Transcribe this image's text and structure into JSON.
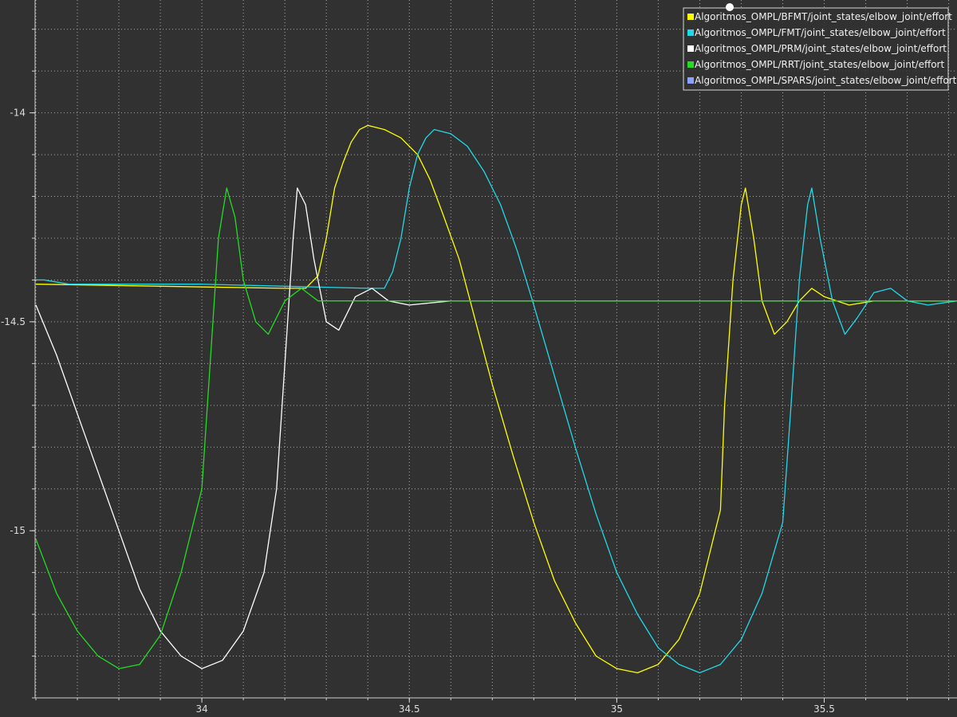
{
  "chart_data": {
    "type": "line",
    "title": "",
    "xlabel": "",
    "ylabel": "",
    "xlim": [
      33.6,
      35.82
    ],
    "ylim": [
      -15.4,
      -13.73
    ],
    "xticks": [
      34,
      34.5,
      35,
      35.5
    ],
    "xtick_labels": [
      "34",
      "34.5",
      "35",
      "35.5"
    ],
    "yticks": [
      -14,
      -14.5,
      -15
    ],
    "ytick_labels": [
      "-14",
      "-14.5",
      "-15"
    ],
    "grid": true,
    "legend_position": "top-right",
    "series": [
      {
        "name": "Algoritmos_OMPL/BFMT/joint_states/elbow_joint/effort",
        "color": "#ffff00",
        "points": [
          [
            33.6,
            -14.41
          ],
          [
            34.2,
            -14.42
          ],
          [
            34.25,
            -14.42
          ],
          [
            34.28,
            -14.39
          ],
          [
            34.3,
            -14.3
          ],
          [
            34.32,
            -14.18
          ],
          [
            34.34,
            -14.12
          ],
          [
            34.36,
            -14.07
          ],
          [
            34.38,
            -14.04
          ],
          [
            34.4,
            -14.03
          ],
          [
            34.44,
            -14.04
          ],
          [
            34.48,
            -14.06
          ],
          [
            34.52,
            -14.1
          ],
          [
            34.55,
            -14.16
          ],
          [
            34.58,
            -14.24
          ],
          [
            34.62,
            -14.35
          ],
          [
            34.66,
            -14.5
          ],
          [
            34.7,
            -14.65
          ],
          [
            34.75,
            -14.82
          ],
          [
            34.8,
            -14.98
          ],
          [
            34.85,
            -15.12
          ],
          [
            34.9,
            -15.22
          ],
          [
            34.95,
            -15.3
          ],
          [
            35.0,
            -15.33
          ],
          [
            35.05,
            -15.34
          ],
          [
            35.1,
            -15.32
          ],
          [
            35.15,
            -15.26
          ],
          [
            35.2,
            -15.15
          ],
          [
            35.25,
            -14.95
          ],
          [
            35.26,
            -14.7
          ],
          [
            35.28,
            -14.4
          ],
          [
            35.3,
            -14.22
          ],
          [
            35.31,
            -14.18
          ],
          [
            35.33,
            -14.3
          ],
          [
            35.35,
            -14.45
          ],
          [
            35.38,
            -14.53
          ],
          [
            35.41,
            -14.5
          ],
          [
            35.44,
            -14.45
          ],
          [
            35.47,
            -14.42
          ],
          [
            35.5,
            -14.44
          ],
          [
            35.56,
            -14.46
          ],
          [
            35.62,
            -14.45
          ],
          [
            35.7,
            -14.45
          ],
          [
            35.82,
            -14.45
          ]
        ]
      },
      {
        "name": "Algoritmos_OMPL/FMT/joint_states/elbow_joint/effort",
        "color": "#22d8e8",
        "points": [
          [
            33.6,
            -14.4
          ],
          [
            33.62,
            -14.4
          ],
          [
            33.68,
            -14.41
          ],
          [
            34.0,
            -14.41
          ],
          [
            34.4,
            -14.42
          ],
          [
            34.44,
            -14.42
          ],
          [
            34.46,
            -14.38
          ],
          [
            34.48,
            -14.3
          ],
          [
            34.5,
            -14.18
          ],
          [
            34.52,
            -14.1
          ],
          [
            34.54,
            -14.06
          ],
          [
            34.56,
            -14.04
          ],
          [
            34.6,
            -14.05
          ],
          [
            34.64,
            -14.08
          ],
          [
            34.68,
            -14.14
          ],
          [
            34.72,
            -14.22
          ],
          [
            34.76,
            -14.33
          ],
          [
            34.8,
            -14.46
          ],
          [
            34.85,
            -14.63
          ],
          [
            34.9,
            -14.8
          ],
          [
            34.95,
            -14.96
          ],
          [
            35.0,
            -15.1
          ],
          [
            35.05,
            -15.2
          ],
          [
            35.1,
            -15.28
          ],
          [
            35.15,
            -15.32
          ],
          [
            35.2,
            -15.34
          ],
          [
            35.25,
            -15.32
          ],
          [
            35.3,
            -15.26
          ],
          [
            35.35,
            -15.15
          ],
          [
            35.4,
            -14.98
          ],
          [
            35.42,
            -14.7
          ],
          [
            35.44,
            -14.4
          ],
          [
            35.46,
            -14.22
          ],
          [
            35.47,
            -14.18
          ],
          [
            35.49,
            -14.3
          ],
          [
            35.52,
            -14.45
          ],
          [
            35.55,
            -14.53
          ],
          [
            35.58,
            -14.49
          ],
          [
            35.62,
            -14.43
          ],
          [
            35.66,
            -14.42
          ],
          [
            35.7,
            -14.45
          ],
          [
            35.75,
            -14.46
          ],
          [
            35.82,
            -14.45
          ]
        ]
      },
      {
        "name": "Algoritmos_OMPL/PRM/joint_states/elbow_joint/effort",
        "color": "#ffffff",
        "points": [
          [
            33.6,
            -14.46
          ],
          [
            33.65,
            -14.58
          ],
          [
            33.7,
            -14.72
          ],
          [
            33.75,
            -14.86
          ],
          [
            33.8,
            -15.0
          ],
          [
            33.85,
            -15.14
          ],
          [
            33.9,
            -15.24
          ],
          [
            33.95,
            -15.3
          ],
          [
            34.0,
            -15.33
          ],
          [
            34.05,
            -15.31
          ],
          [
            34.1,
            -15.24
          ],
          [
            34.15,
            -15.1
          ],
          [
            34.18,
            -14.9
          ],
          [
            34.2,
            -14.6
          ],
          [
            34.22,
            -14.3
          ],
          [
            34.23,
            -14.18
          ],
          [
            34.25,
            -14.22
          ],
          [
            34.27,
            -14.35
          ],
          [
            34.3,
            -14.5
          ],
          [
            34.33,
            -14.52
          ],
          [
            34.37,
            -14.44
          ],
          [
            34.41,
            -14.42
          ],
          [
            34.45,
            -14.45
          ],
          [
            34.5,
            -14.46
          ],
          [
            34.6,
            -14.45
          ],
          [
            35.0,
            -14.45
          ],
          [
            35.82,
            -14.45
          ]
        ]
      },
      {
        "name": "Algoritmos_OMPL/RRT/joint_states/elbow_joint/effort",
        "color": "#22dd22",
        "points": [
          [
            33.6,
            -15.02
          ],
          [
            33.65,
            -15.15
          ],
          [
            33.7,
            -15.24
          ],
          [
            33.75,
            -15.3
          ],
          [
            33.8,
            -15.33
          ],
          [
            33.85,
            -15.32
          ],
          [
            33.9,
            -15.25
          ],
          [
            33.95,
            -15.1
          ],
          [
            34.0,
            -14.9
          ],
          [
            34.02,
            -14.6
          ],
          [
            34.04,
            -14.3
          ],
          [
            34.06,
            -14.18
          ],
          [
            34.08,
            -14.25
          ],
          [
            34.1,
            -14.4
          ],
          [
            34.13,
            -14.5
          ],
          [
            34.16,
            -14.53
          ],
          [
            34.2,
            -14.45
          ],
          [
            34.24,
            -14.42
          ],
          [
            34.28,
            -14.45
          ],
          [
            34.35,
            -14.45
          ],
          [
            34.5,
            -14.45
          ],
          [
            35.0,
            -14.45
          ],
          [
            35.82,
            -14.45
          ]
        ]
      },
      {
        "name": "Algoritmos_OMPL/SPARS/joint_states/elbow_joint/effort",
        "color": "#8ca0ff",
        "points": []
      }
    ]
  }
}
